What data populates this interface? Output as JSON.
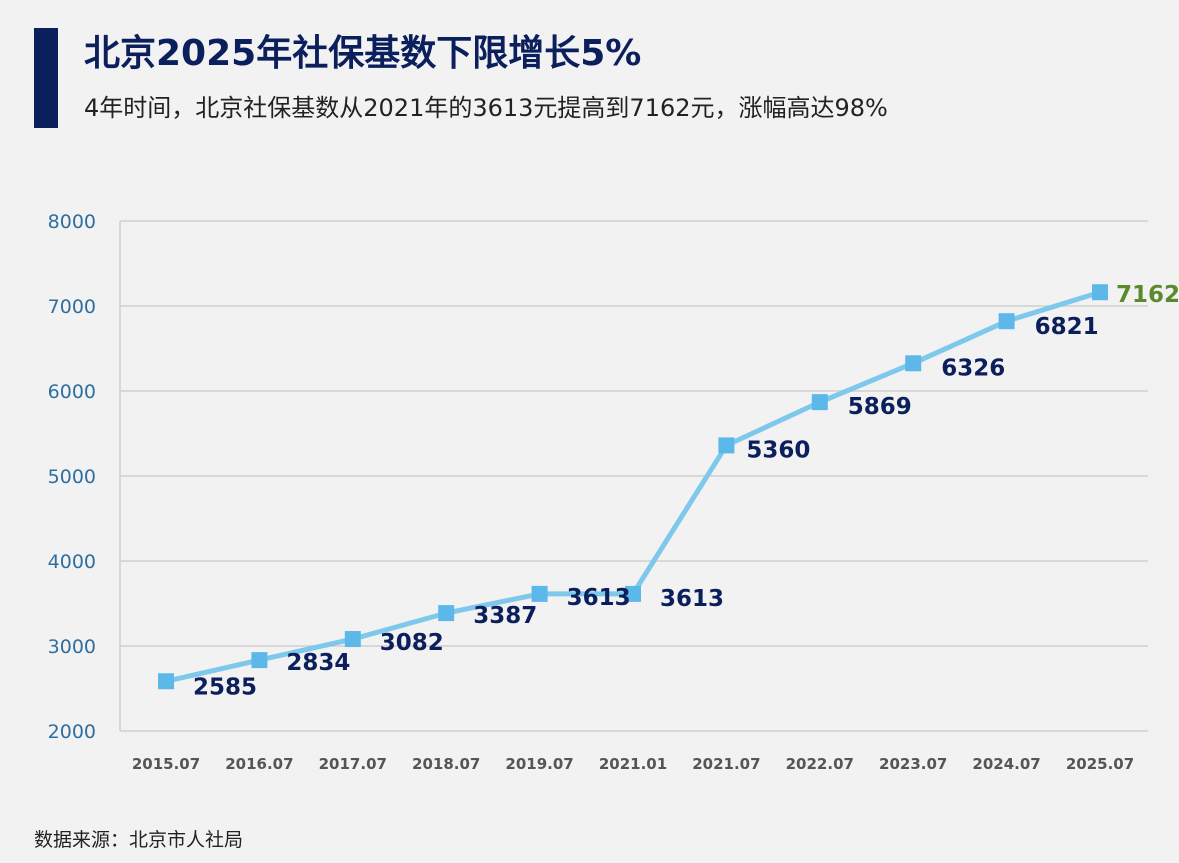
{
  "header": {
    "title": "北京2025年社保基数下限增长5%",
    "subtitle": "4年时间，北京社保基数从2021年的3613元提高到7162元，涨幅高达98%"
  },
  "footer": {
    "source": "数据来源：北京市人社局"
  },
  "colors": {
    "accent": "#0b1f5c",
    "line": "#7ec8ec",
    "marker": "#5bb8e8",
    "label": "#0b1f5c",
    "last_label": "#5a8a2c",
    "ytick": "#2f6f9f",
    "grid": "#cfcfcf"
  },
  "chart_data": {
    "type": "line",
    "title": "北京2025年社保基数下限增长5%",
    "categories": [
      "2015.07",
      "2016.07",
      "2017.07",
      "2018.07",
      "2019.07",
      "2021.01",
      "2021.07",
      "2022.07",
      "2023.07",
      "2024.07",
      "2025.07"
    ],
    "series": [
      {
        "name": "社保基数下限",
        "values": [
          2585,
          2834,
          3082,
          3387,
          3613,
          3613,
          5360,
          5869,
          6326,
          6821,
          7162
        ]
      }
    ],
    "data_labels": [
      "2585",
      "2834",
      "3082",
      "3387",
      "3613",
      "3613",
      "5360",
      "5869",
      "6326",
      "6821",
      "7162"
    ],
    "yticks": [
      "2000",
      "3000",
      "4000",
      "5000",
      "6000",
      "7000",
      "8000"
    ],
    "ylim": [
      2000,
      8000
    ],
    "xlabel": "",
    "ylabel": "",
    "grid": true,
    "legend": "none"
  }
}
